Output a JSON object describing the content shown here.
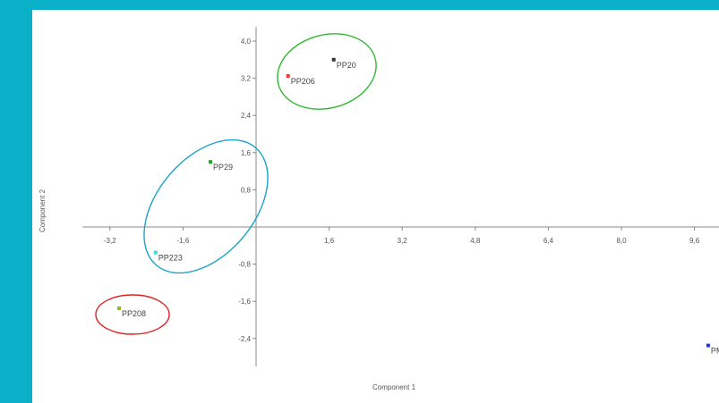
{
  "colors": {
    "frame": "#0ab0c8",
    "axis": "#888888",
    "ellipse_green": "#2eb82e",
    "ellipse_blue": "#1aa3c8",
    "ellipse_red": "#e02020"
  },
  "chart_data": {
    "type": "scatter",
    "xlabel": "Component 1",
    "ylabel": "Component 2",
    "xlim": [
      -3.8,
      10.4
    ],
    "ylim": [
      -3.0,
      4.3
    ],
    "x_ticks": [
      "-3,2",
      "-1,6",
      "1,6",
      "3,2",
      "4,8",
      "6,4",
      "8,0",
      "9,6"
    ],
    "y_ticks": [
      "4,0",
      "3,2",
      "2,4",
      "1,6",
      "0,8",
      "-0,8",
      "-1,6",
      "-2,4"
    ],
    "points": [
      {
        "label": "PP20",
        "x": 1.7,
        "y": 3.6,
        "color": "#333333"
      },
      {
        "label": "PP206",
        "x": 0.7,
        "y": 3.25,
        "color": "#ff3333"
      },
      {
        "label": "PP29",
        "x": -1.0,
        "y": 1.4,
        "color": "#22aa22"
      },
      {
        "label": "PP223",
        "x": -2.2,
        "y": -0.55,
        "color": "#33dddd"
      },
      {
        "label": "PP208",
        "x": -3.0,
        "y": -1.75,
        "color": "#88bb33"
      },
      {
        "label": "PM",
        "x": 9.9,
        "y": -2.55,
        "color": "#2233ee"
      }
    ],
    "groups": [
      {
        "members": [
          "PP20",
          "PP206"
        ],
        "color": "green"
      },
      {
        "members": [
          "PP29",
          "PP223"
        ],
        "color": "blue"
      },
      {
        "members": [
          "PP208"
        ],
        "color": "red"
      }
    ]
  }
}
